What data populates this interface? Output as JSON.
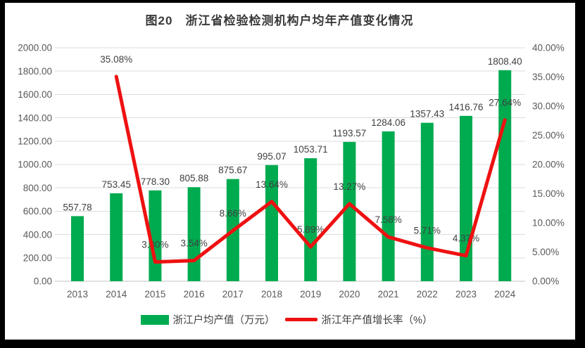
{
  "page": {
    "frame_color": "#000000",
    "background": "#ffffff"
  },
  "chart_data": {
    "type": "combo-bar-line",
    "title": "图20　浙江省检验检测机构户均年产值变化情况",
    "categories": [
      "2013",
      "2014",
      "2015",
      "2016",
      "2017",
      "2018",
      "2019",
      "2020",
      "2021",
      "2022",
      "2023",
      "2024"
    ],
    "series": [
      {
        "name": "浙江户均产值（万元）",
        "type": "bar",
        "axis": "left",
        "color": "#00ab50",
        "values": [
          557.78,
          753.45,
          778.3,
          805.88,
          875.67,
          995.07,
          1053.71,
          1193.57,
          1284.06,
          1357.43,
          1416.76,
          1808.4
        ],
        "labels": [
          "557.78",
          "753.45",
          "778.30",
          "805.88",
          "875.67",
          "995.07",
          "1053.71",
          "1193.57",
          "1284.06",
          "1357.43",
          "1416.76",
          "1808.40"
        ]
      },
      {
        "name": "浙江年产值增长率（%）",
        "type": "line",
        "axis": "right",
        "color": "#ee1111",
        "values": [
          null,
          35.08,
          3.3,
          3.54,
          8.66,
          13.64,
          5.89,
          13.27,
          7.58,
          5.71,
          4.37,
          27.64
        ],
        "labels": [
          null,
          "35.08%",
          "3.30%",
          "3.54%",
          "8.66%",
          "13.64%",
          "5.89%",
          "13.27%",
          "7.58%",
          "5.71%",
          "4.37%",
          "27.64%"
        ]
      }
    ],
    "left_axis": {
      "min": 0,
      "max": 2000,
      "ticks": [
        "0.00",
        "200.00",
        "400.00",
        "600.00",
        "800.00",
        "1000.00",
        "1200.00",
        "1400.00",
        "1600.00",
        "1800.00",
        "2000.00"
      ]
    },
    "right_axis": {
      "min": 0,
      "max": 40,
      "ticks": [
        "0.00%",
        "5.00%",
        "10.00%",
        "15.00%",
        "20.00%",
        "25.00%",
        "30.00%",
        "35.00%",
        "40.00%"
      ]
    },
    "grid": true,
    "gridline_color": "#dcdcdc",
    "axis_line_color": "#c3c3c3",
    "tick_text_color": "#595959",
    "data_label_color": "#404040",
    "legend_position": "bottom"
  }
}
